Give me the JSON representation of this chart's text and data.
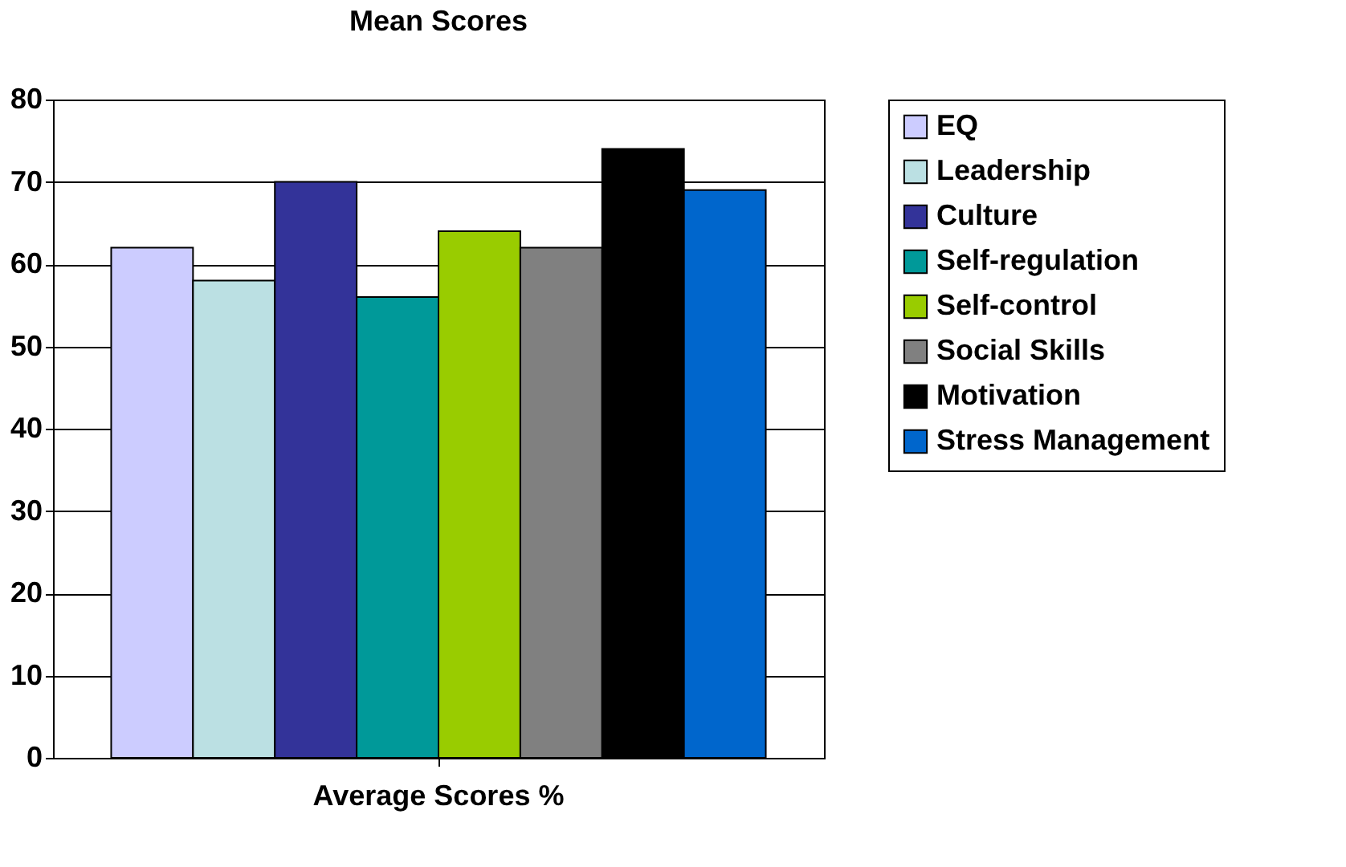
{
  "chart_data": {
    "type": "bar",
    "title": "Mean Scores",
    "categories": [
      "Average Scores %"
    ],
    "series": [
      {
        "name": "EQ",
        "color": "#ccccff",
        "values": [
          62
        ]
      },
      {
        "name": "Leadership",
        "color": "#bbe0e3",
        "values": [
          58
        ]
      },
      {
        "name": "Culture",
        "color": "#333399",
        "values": [
          70
        ]
      },
      {
        "name": "Self-regulation",
        "color": "#009999",
        "values": [
          56
        ]
      },
      {
        "name": "Self-control",
        "color": "#99cc00",
        "values": [
          64
        ]
      },
      {
        "name": "Social Skills",
        "color": "#808080",
        "values": [
          62
        ]
      },
      {
        "name": "Motivation",
        "color": "#000000",
        "values": [
          74
        ]
      },
      {
        "name": "Stress Management",
        "color": "#0066cc",
        "values": [
          69
        ]
      }
    ],
    "ylim": [
      0,
      80
    ],
    "yticks": [
      0,
      10,
      20,
      30,
      40,
      50,
      60,
      70,
      80
    ],
    "grid": "y",
    "legend": "right"
  }
}
